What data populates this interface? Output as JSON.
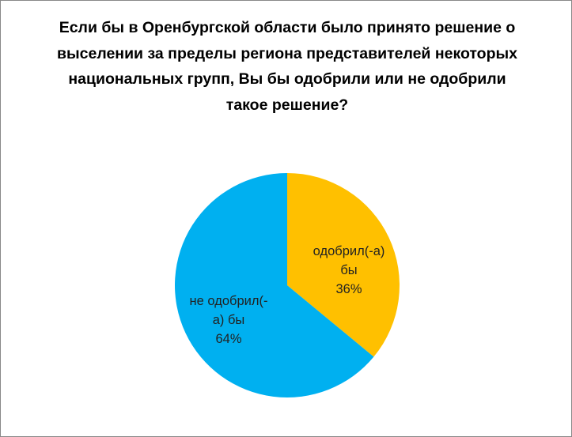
{
  "chart_data": {
    "type": "pie",
    "title": "Если бы в Оренбургской области было принято решение о выселении за пределы региона представителей некоторых национальных групп, Вы бы одобрили или не одобрили такое решение?",
    "slices": [
      {
        "label": "одобрил(-а) бы",
        "value": 36,
        "value_label": "36%",
        "color": "#FFC000",
        "label_lines": [
          "одобрил(-а)",
          "бы",
          "36%"
        ]
      },
      {
        "label": "не одобрил(-а) бы",
        "value": 64,
        "value_label": "64%",
        "color": "#00B0F0",
        "label_lines": [
          "не одобрил(-",
          "а) бы",
          "64%"
        ]
      }
    ],
    "start_angle": "12 o'clock",
    "direction": "clockwise",
    "legend": "none"
  }
}
